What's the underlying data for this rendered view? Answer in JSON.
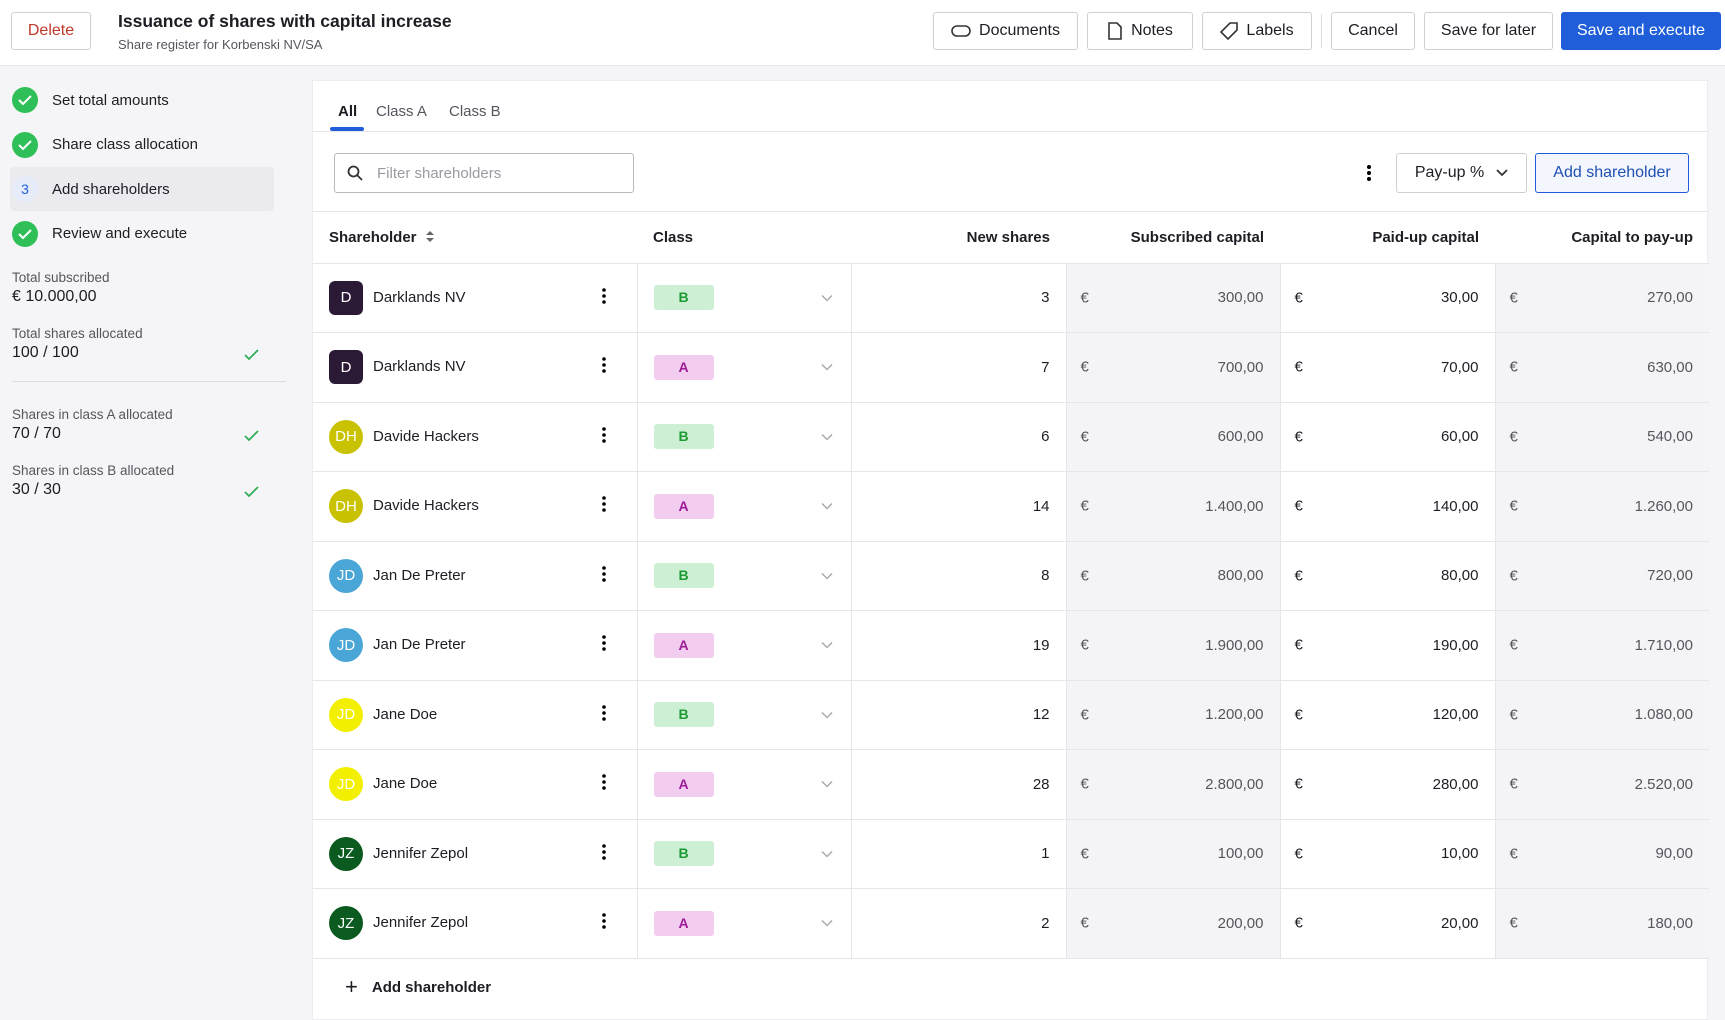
{
  "header": {
    "delete": "Delete",
    "title": "Issuance of shares with capital increase",
    "subtitle": "Share register for Korbenski NV/SA",
    "buttons": [
      "Documents",
      "Notes",
      "Labels"
    ],
    "cancel": "Cancel",
    "save_later": "Save for later",
    "save_execute": "Save and execute"
  },
  "steps": [
    {
      "label": "Set total amounts"
    },
    {
      "label": "Share class allocation"
    },
    {
      "label": "Add shareholders",
      "number": "3"
    },
    {
      "label": "Review and execute"
    }
  ],
  "summary": [
    {
      "label": "Total subscribed",
      "value": "€ 10.000,00"
    },
    {
      "label": "Total shares allocated",
      "value": "100 / 100"
    },
    {
      "label": "Shares in class A allocated",
      "value": "70 / 70"
    },
    {
      "label": "Shares in class B allocated",
      "value": "30 / 30"
    }
  ],
  "tabs": [
    "All",
    "Class A",
    "Class B"
  ],
  "toolbar": {
    "filter": "Filter shareholders",
    "payup": "Pay-up %",
    "add": "Add shareholder"
  },
  "table": {
    "currency": "€",
    "columns": [
      "Shareholder",
      "Class",
      "New shares",
      "Subscribed capital",
      "Paid-up capital",
      "Capital to pay-up"
    ],
    "rows": [
      {
        "initials": "D",
        "color": "#2b1a36",
        "name": "Darklands NV",
        "class": "B",
        "new": 3,
        "subscribed": "300,00",
        "paid": "30,00",
        "topay": "270,00"
      },
      {
        "initials": "D",
        "color": "#2b1a36",
        "name": "Darklands NV",
        "class": "A",
        "new": 7,
        "subscribed": "700,00",
        "paid": "70,00",
        "topay": "630,00"
      },
      {
        "initials": "DH",
        "color": "#c9c200",
        "name": "Davide Hackers",
        "class": "B",
        "new": 6,
        "subscribed": "600,00",
        "paid": "60,00",
        "topay": "540,00"
      },
      {
        "initials": "DH",
        "color": "#c9c200",
        "name": "Davide Hackers",
        "class": "A",
        "new": 14,
        "subscribed": "1.400,00",
        "paid": "140,00",
        "topay": "1.260,00"
      },
      {
        "initials": "JD",
        "color": "#4aa6d6",
        "name": "Jan De Preter",
        "class": "B",
        "new": 8,
        "subscribed": "800,00",
        "paid": "80,00",
        "topay": "720,00"
      },
      {
        "initials": "JD",
        "color": "#4aa6d6",
        "name": "Jan De Preter",
        "class": "A",
        "new": 19,
        "subscribed": "1.900,00",
        "paid": "190,00",
        "topay": "1.710,00"
      },
      {
        "initials": "JD",
        "color": "#f2ef00",
        "name": "Jane Doe",
        "class": "B",
        "new": 12,
        "subscribed": "1.200,00",
        "paid": "120,00",
        "topay": "1.080,00"
      },
      {
        "initials": "JD",
        "color": "#f2ef00",
        "name": "Jane Doe",
        "class": "A",
        "new": 28,
        "subscribed": "2.800,00",
        "paid": "280,00",
        "topay": "2.520,00"
      },
      {
        "initials": "JZ",
        "color": "#0b5a1f",
        "name": "Jennifer Zepol",
        "class": "B",
        "new": 1,
        "subscribed": "100,00",
        "paid": "10,00",
        "topay": "90,00"
      },
      {
        "initials": "JZ",
        "color": "#0b5a1f",
        "name": "Jennifer Zepol",
        "class": "A",
        "new": 2,
        "subscribed": "200,00",
        "paid": "20,00",
        "topay": "180,00"
      }
    ]
  },
  "footer": {
    "add": "Add shareholder"
  }
}
